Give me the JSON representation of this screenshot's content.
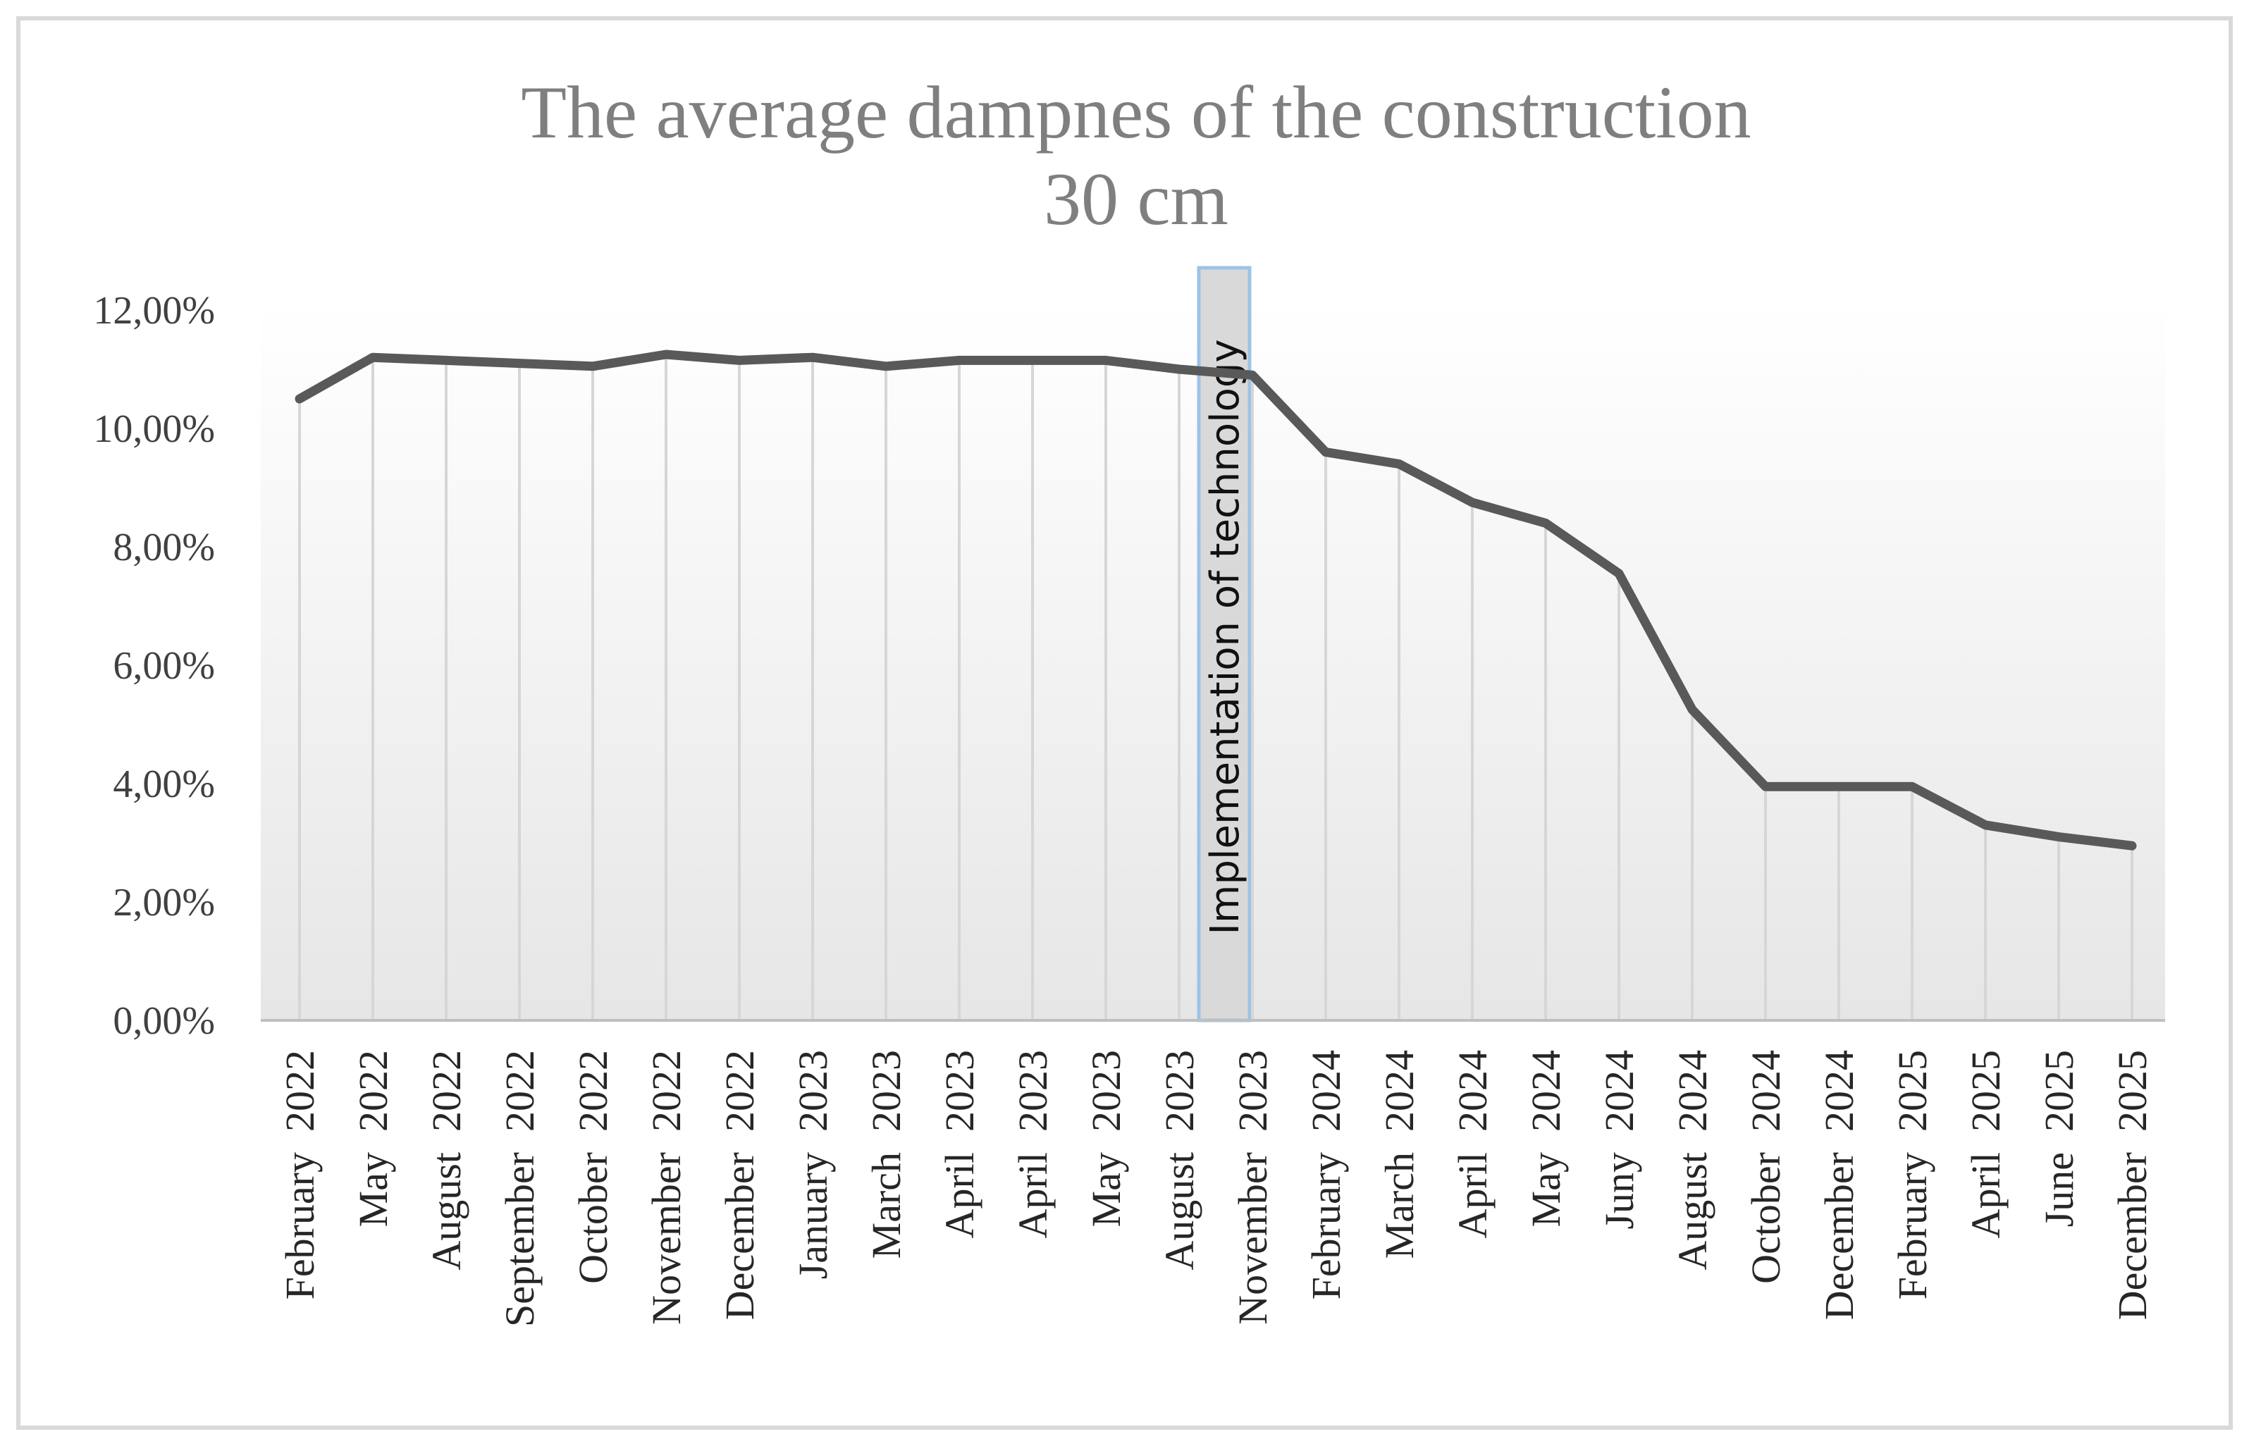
{
  "chart_data": {
    "type": "line",
    "title": "The average  dampnes  of the construction",
    "subtitle": "30  cm",
    "xlabel": "",
    "ylabel": "",
    "ylim": [
      0,
      12
    ],
    "y_ticks": [
      "0,00%",
      "2,00%",
      "4,00%",
      "6,00%",
      "8,00%",
      "10,00%",
      "12,00%"
    ],
    "grid": "vertical drop lines",
    "legend": "none",
    "categories": [
      "February  2022",
      "May  2022",
      "August  2022",
      "September  2022",
      "October  2022",
      "November  2022",
      "December  2022",
      "January  2023",
      "March  2023",
      "April  2023",
      "April  2023",
      "May  2023",
      "August  2023",
      "November  2023",
      "February  2024",
      "March  2024",
      "April  2024",
      "May  2024",
      "Juny  2024",
      "August  2024",
      "October  2024",
      "December  2024",
      "February  2025",
      "April  2025",
      "June  2025",
      "December  2025"
    ],
    "series": [
      {
        "name": "Average dampness",
        "unit": "%",
        "color": "#595959",
        "values": [
          10.5,
          11.2,
          11.15,
          11.1,
          11.05,
          11.25,
          11.15,
          11.2,
          11.05,
          11.15,
          11.15,
          11.15,
          11.0,
          10.9,
          9.6,
          9.4,
          8.75,
          8.4,
          7.55,
          5.25,
          3.95,
          3.95,
          3.95,
          3.3,
          3.1,
          2.95
        ]
      }
    ],
    "annotation": {
      "text": "Implementation of technology",
      "between_categories": [
        12,
        13
      ],
      "fill": "#d9d9d9",
      "border": "#9dc3e6"
    }
  }
}
